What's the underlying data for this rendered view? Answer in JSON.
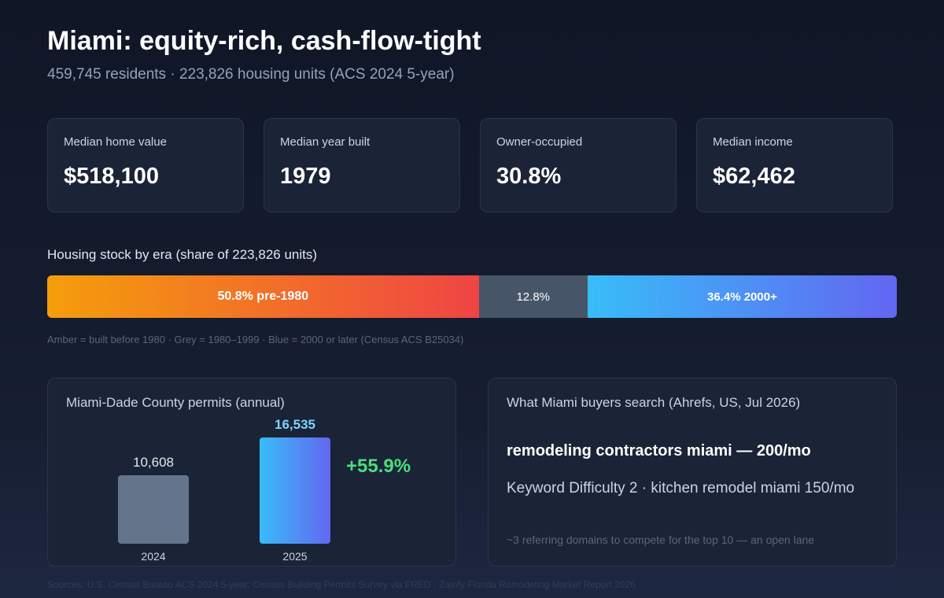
{
  "header": {
    "title": "Miami: equity-rich, cash-flow-tight",
    "subtitle": "459,745 residents · 223,826 housing units (ACS 2024 5-year)"
  },
  "kpis": [
    {
      "label": "Median home value",
      "value": "$518,100"
    },
    {
      "label": "Median year built",
      "value": "1979"
    },
    {
      "label": "Owner-occupied",
      "value": "30.8%"
    },
    {
      "label": "Median income",
      "value": "$62,462"
    }
  ],
  "era": {
    "title": "Housing stock by era (share of 223,826 units)",
    "segments": [
      {
        "value": 50.8,
        "label": "50.8% pre-1980"
      },
      {
        "value": 12.8,
        "label": "12.8%"
      },
      {
        "value": 36.4,
        "label": "36.4% 2000+"
      }
    ],
    "note": "Amber = built before 1980 · Grey = 1980–1999 · Blue = 2000 or later (Census ACS B25034)"
  },
  "permits": {
    "title": "Miami-Dade County permits (annual)",
    "categories": [
      "2024",
      "2025"
    ],
    "values": [
      10608,
      16535
    ],
    "value_labels": [
      "10,608",
      "16,535"
    ],
    "change": "+55.9%"
  },
  "search": {
    "title": "What Miami buyers search (Ahrefs, US, Jul 2026)",
    "headline": "remodeling contractors miami — 200/mo",
    "detail": "Keyword Difficulty 2 · kitchen remodel miami 150/mo",
    "note": "~3 referring domains to compete for the top 10 — an open lane"
  },
  "footer": "Sources: U.S. Census Bureau ACS 2024 5-year; Census Building Permits Survey via FRED · Zainfy Florida Remodeling Market Report 2026"
}
